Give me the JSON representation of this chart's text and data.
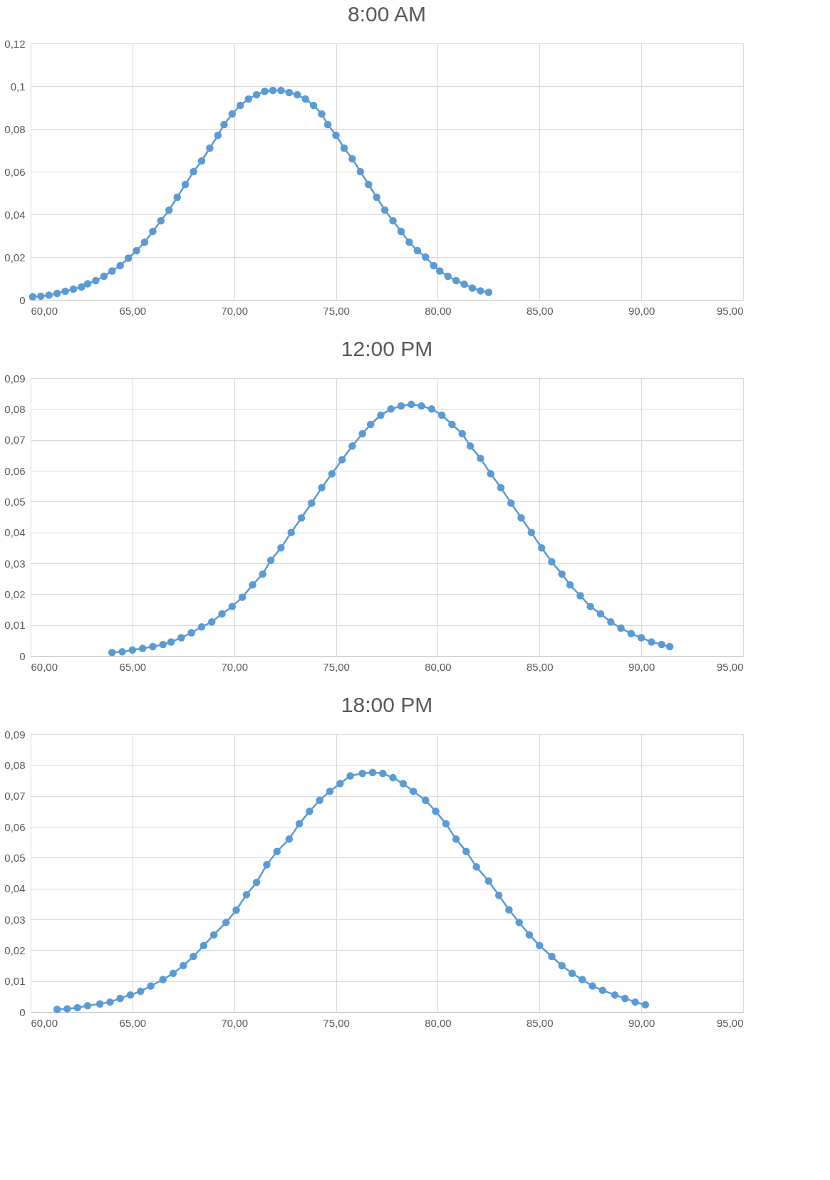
{
  "chart_data": [
    {
      "type": "line",
      "title": "8:00 AM",
      "grid": true,
      "marker": "circle",
      "line_style": "solid",
      "xlim": [
        60,
        95
      ],
      "xticks": [
        {
          "value": 60,
          "label": "60,00"
        },
        {
          "value": 65,
          "label": "65,00"
        },
        {
          "value": 70,
          "label": "70,00"
        },
        {
          "value": 75,
          "label": "75,00"
        },
        {
          "value": 80,
          "label": "80,00"
        },
        {
          "value": 85,
          "label": "85,00"
        },
        {
          "value": 90,
          "label": "90,00"
        },
        {
          "value": 95,
          "label": "95,00"
        }
      ],
      "ylim": [
        0,
        0.12
      ],
      "yticks": [
        {
          "value": 0,
          "label": "0"
        },
        {
          "value": 0.02,
          "label": "0,02"
        },
        {
          "value": 0.04,
          "label": "0,04"
        },
        {
          "value": 0.06,
          "label": "0,06"
        },
        {
          "value": 0.08,
          "label": "0,08"
        },
        {
          "value": 0.1,
          "label": "0,1"
        },
        {
          "value": 0.12,
          "label": "0,12"
        }
      ],
      "x": [
        60.1,
        60.5,
        60.9,
        61.3,
        61.7,
        62.1,
        62.5,
        62.8,
        63.2,
        63.6,
        64.0,
        64.4,
        64.8,
        65.2,
        65.6,
        66.0,
        66.4,
        66.8,
        67.2,
        67.6,
        68.0,
        68.4,
        68.8,
        69.2,
        69.5,
        69.9,
        70.3,
        70.7,
        71.1,
        71.5,
        71.9,
        72.3,
        72.7,
        73.1,
        73.5,
        73.9,
        74.3,
        74.6,
        75.0,
        75.4,
        75.8,
        76.2,
        76.6,
        77.0,
        77.4,
        77.8,
        78.2,
        78.6,
        79.0,
        79.4,
        79.8,
        80.1,
        80.5,
        80.9,
        81.3,
        81.7,
        82.1,
        82.5
      ],
      "series": [
        {
          "color": "#5b9bd5",
          "values": [
            0.0014,
            0.0017,
            0.0022,
            0.003,
            0.004,
            0.005,
            0.006,
            0.0075,
            0.009,
            0.011,
            0.0135,
            0.016,
            0.0195,
            0.023,
            0.027,
            0.032,
            0.037,
            0.042,
            0.048,
            0.054,
            0.06,
            0.065,
            0.071,
            0.077,
            0.082,
            0.087,
            0.091,
            0.094,
            0.096,
            0.0976,
            0.098,
            0.098,
            0.097,
            0.096,
            0.094,
            0.091,
            0.087,
            0.082,
            0.077,
            0.071,
            0.066,
            0.06,
            0.054,
            0.048,
            0.042,
            0.037,
            0.032,
            0.027,
            0.023,
            0.02,
            0.016,
            0.0135,
            0.011,
            0.009,
            0.0073,
            0.0055,
            0.0042,
            0.0035
          ]
        }
      ]
    },
    {
      "type": "line",
      "title": "12:00 PM",
      "grid": true,
      "marker": "circle",
      "line_style": "solid",
      "xlim": [
        60,
        95
      ],
      "xticks": [
        {
          "value": 60,
          "label": "60,00"
        },
        {
          "value": 65,
          "label": "65,00"
        },
        {
          "value": 70,
          "label": "70,00"
        },
        {
          "value": 75,
          "label": "75,00"
        },
        {
          "value": 80,
          "label": "80,00"
        },
        {
          "value": 85,
          "label": "85,00"
        },
        {
          "value": 90,
          "label": "90,00"
        },
        {
          "value": 95,
          "label": "95,00"
        }
      ],
      "ylim": [
        0,
        0.09
      ],
      "yticks": [
        {
          "value": 0,
          "label": "0"
        },
        {
          "value": 0.01,
          "label": "0,01"
        },
        {
          "value": 0.02,
          "label": "0,02"
        },
        {
          "value": 0.03,
          "label": "0,03"
        },
        {
          "value": 0.04,
          "label": "0,04"
        },
        {
          "value": 0.05,
          "label": "0,05"
        },
        {
          "value": 0.06,
          "label": "0,06"
        },
        {
          "value": 0.07,
          "label": "0,07"
        },
        {
          "value": 0.08,
          "label": "0,08"
        },
        {
          "value": 0.09,
          "label": "0,09"
        }
      ],
      "x": [
        64.0,
        64.5,
        65.0,
        65.5,
        66.0,
        66.5,
        66.9,
        67.4,
        67.9,
        68.4,
        68.9,
        69.4,
        69.9,
        70.4,
        70.9,
        71.4,
        71.8,
        72.3,
        72.8,
        73.3,
        73.8,
        74.3,
        74.8,
        75.3,
        75.8,
        76.3,
        76.7,
        77.2,
        77.7,
        78.2,
        78.7,
        79.2,
        79.7,
        80.2,
        80.7,
        81.2,
        81.6,
        82.1,
        82.6,
        83.1,
        83.6,
        84.1,
        84.6,
        85.1,
        85.6,
        86.1,
        86.5,
        87.0,
        87.5,
        88.0,
        88.5,
        89.0,
        89.5,
        90.0,
        90.5,
        91.0,
        91.4
      ],
      "series": [
        {
          "color": "#5b9bd5",
          "values": [
            0.0011,
            0.0013,
            0.0019,
            0.0024,
            0.003,
            0.0037,
            0.0045,
            0.0059,
            0.0075,
            0.0094,
            0.011,
            0.0136,
            0.016,
            0.019,
            0.023,
            0.0265,
            0.031,
            0.035,
            0.04,
            0.0447,
            0.0495,
            0.0545,
            0.059,
            0.0636,
            0.068,
            0.072,
            0.075,
            0.078,
            0.08,
            0.081,
            0.0815,
            0.081,
            0.08,
            0.078,
            0.075,
            0.072,
            0.068,
            0.064,
            0.059,
            0.0545,
            0.0495,
            0.0447,
            0.04,
            0.035,
            0.0305,
            0.0265,
            0.023,
            0.0195,
            0.016,
            0.0136,
            0.011,
            0.009,
            0.0072,
            0.0059,
            0.0045,
            0.0037,
            0.003
          ]
        }
      ]
    },
    {
      "type": "line",
      "title": "18:00 PM",
      "grid": true,
      "marker": "circle",
      "line_style": "solid",
      "xlim": [
        60,
        95
      ],
      "xticks": [
        {
          "value": 60,
          "label": "60,00"
        },
        {
          "value": 65,
          "label": "65,00"
        },
        {
          "value": 70,
          "label": "70,00"
        },
        {
          "value": 75,
          "label": "75,00"
        },
        {
          "value": 80,
          "label": "80,00"
        },
        {
          "value": 85,
          "label": "85,00"
        },
        {
          "value": 90,
          "label": "90,00"
        },
        {
          "value": 95,
          "label": "95,00"
        }
      ],
      "ylim": [
        0,
        0.09
      ],
      "yticks": [
        {
          "value": 0,
          "label": "0"
        },
        {
          "value": 0.01,
          "label": "0,01"
        },
        {
          "value": 0.02,
          "label": "0,02"
        },
        {
          "value": 0.03,
          "label": "0,03"
        },
        {
          "value": 0.04,
          "label": "0,04"
        },
        {
          "value": 0.05,
          "label": "0,05"
        },
        {
          "value": 0.06,
          "label": "0,06"
        },
        {
          "value": 0.07,
          "label": "0,07"
        },
        {
          "value": 0.08,
          "label": "0,08"
        },
        {
          "value": 0.09,
          "label": "0,09"
        }
      ],
      "x": [
        61.3,
        61.8,
        62.3,
        62.8,
        63.4,
        63.9,
        64.4,
        64.9,
        65.4,
        65.9,
        66.5,
        67.0,
        67.5,
        68.0,
        68.5,
        69.0,
        69.6,
        70.1,
        70.6,
        71.1,
        71.6,
        72.1,
        72.7,
        73.2,
        73.7,
        74.2,
        74.7,
        75.2,
        75.7,
        76.3,
        76.8,
        77.3,
        77.8,
        78.3,
        78.8,
        79.4,
        79.9,
        80.4,
        80.9,
        81.4,
        81.9,
        82.5,
        83.0,
        83.5,
        84.0,
        84.5,
        85.0,
        85.6,
        86.1,
        86.6,
        87.1,
        87.6,
        88.1,
        88.7,
        89.2,
        89.7,
        90.2
      ],
      "series": [
        {
          "color": "#5b9bd5",
          "values": [
            0.0008,
            0.001,
            0.0014,
            0.002,
            0.0026,
            0.0032,
            0.0044,
            0.0055,
            0.0067,
            0.0084,
            0.0105,
            0.0125,
            0.015,
            0.018,
            0.0215,
            0.025,
            0.029,
            0.033,
            0.038,
            0.042,
            0.0477,
            0.052,
            0.056,
            0.061,
            0.065,
            0.0686,
            0.0715,
            0.074,
            0.0765,
            0.0773,
            0.0776,
            0.0773,
            0.0759,
            0.074,
            0.0715,
            0.0686,
            0.065,
            0.061,
            0.056,
            0.052,
            0.047,
            0.0424,
            0.0378,
            0.0331,
            0.029,
            0.025,
            0.0215,
            0.018,
            0.015,
            0.0125,
            0.0105,
            0.0084,
            0.007,
            0.0055,
            0.0044,
            0.0032,
            0.0023
          ]
        }
      ]
    }
  ]
}
